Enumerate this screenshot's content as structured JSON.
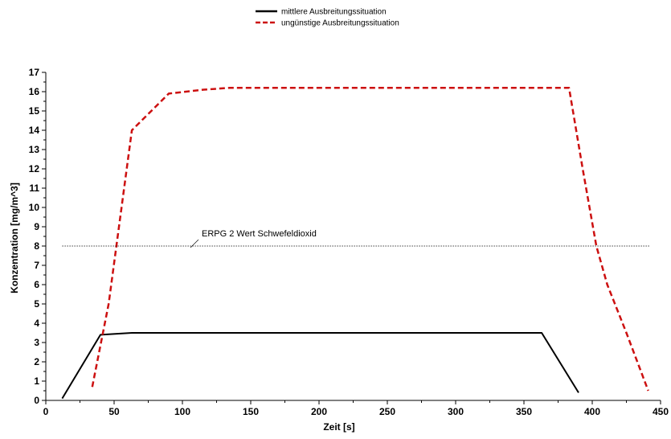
{
  "chart_data": {
    "type": "line",
    "title": "",
    "xlabel": "Zeit [s]",
    "ylabel": "Konzentration [mg/m^3]",
    "xlim": [
      0,
      450
    ],
    "ylim": [
      0,
      17
    ],
    "xticks": [
      0,
      50,
      100,
      150,
      200,
      250,
      300,
      350,
      400,
      450
    ],
    "yticks": [
      0,
      1,
      2,
      3,
      4,
      5,
      6,
      7,
      8,
      9,
      10,
      11,
      12,
      13,
      14,
      15,
      16,
      17
    ],
    "grid": false,
    "legend_position": "top-center",
    "series": [
      {
        "name": "mittlere Ausbreitungssituation",
        "color": "#000000",
        "style": "solid",
        "points": [
          [
            12,
            0.1
          ],
          [
            40,
            3.4
          ],
          [
            63,
            3.5
          ],
          [
            363,
            3.5
          ],
          [
            390,
            0.4
          ]
        ]
      },
      {
        "name": "ungünstige Ausbreitungssituation",
        "color": "#cc1010",
        "style": "dashed",
        "points": [
          [
            34,
            0.7
          ],
          [
            46,
            5
          ],
          [
            63,
            14
          ],
          [
            90,
            15.9
          ],
          [
            115,
            16.1
          ],
          [
            135,
            16.2
          ],
          [
            383,
            16.2
          ],
          [
            393,
            12
          ],
          [
            403,
            8
          ],
          [
            411,
            6
          ],
          [
            425,
            3.5
          ],
          [
            441,
            0.5
          ]
        ]
      }
    ],
    "annotations": [
      {
        "text": "ERPG 2 Wert Schwefeldioxid",
        "x": [
          12,
          442
        ],
        "y": 8,
        "style": "dotted",
        "color": "#000000"
      }
    ]
  }
}
